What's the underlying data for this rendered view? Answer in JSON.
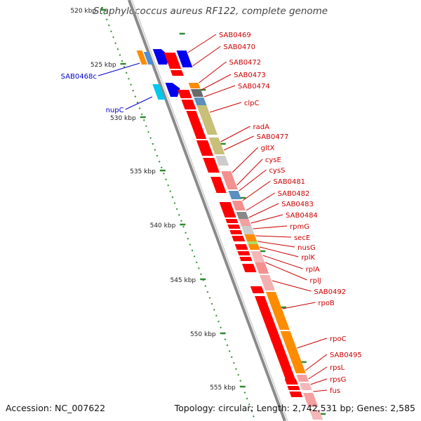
{
  "title": "Staphylococcus aureus RF122, complete genome",
  "footer": {
    "accession": "Accession: NC_007622",
    "summary": "Topology: circular; Length: 2,742,531 bp; Genes: 2,585"
  },
  "ruler_labels": [
    "520 kbp",
    "525 kbp",
    "530 kbp",
    "535 kbp",
    "540 kbp",
    "545 kbp",
    "550 kbp",
    "555 kbp"
  ],
  "colors": {
    "forward_label": "#cc0000",
    "reverse_label": "#0000cc",
    "backbone": "#8a8a8a",
    "ruler": "#2e8b2e"
  },
  "reverse_genes": [
    "SAB0468c",
    "nupC"
  ],
  "forward_genes": [
    "SAB0469",
    "SAB0470",
    "SAB0472",
    "SAB0473",
    "SAB0474",
    "clpC",
    "radA",
    "SAB0477",
    "gltX",
    "cysE",
    "cysS",
    "SAB0481",
    "SAB0482",
    "SAB0483",
    "SAB0484",
    "rpmG",
    "secE",
    "nusG",
    "rplK",
    "rplA",
    "rplJ",
    "SAB0492",
    "rpoB",
    "rpoC",
    "SAB0495",
    "rpsL",
    "rpsG",
    "fus"
  ]
}
